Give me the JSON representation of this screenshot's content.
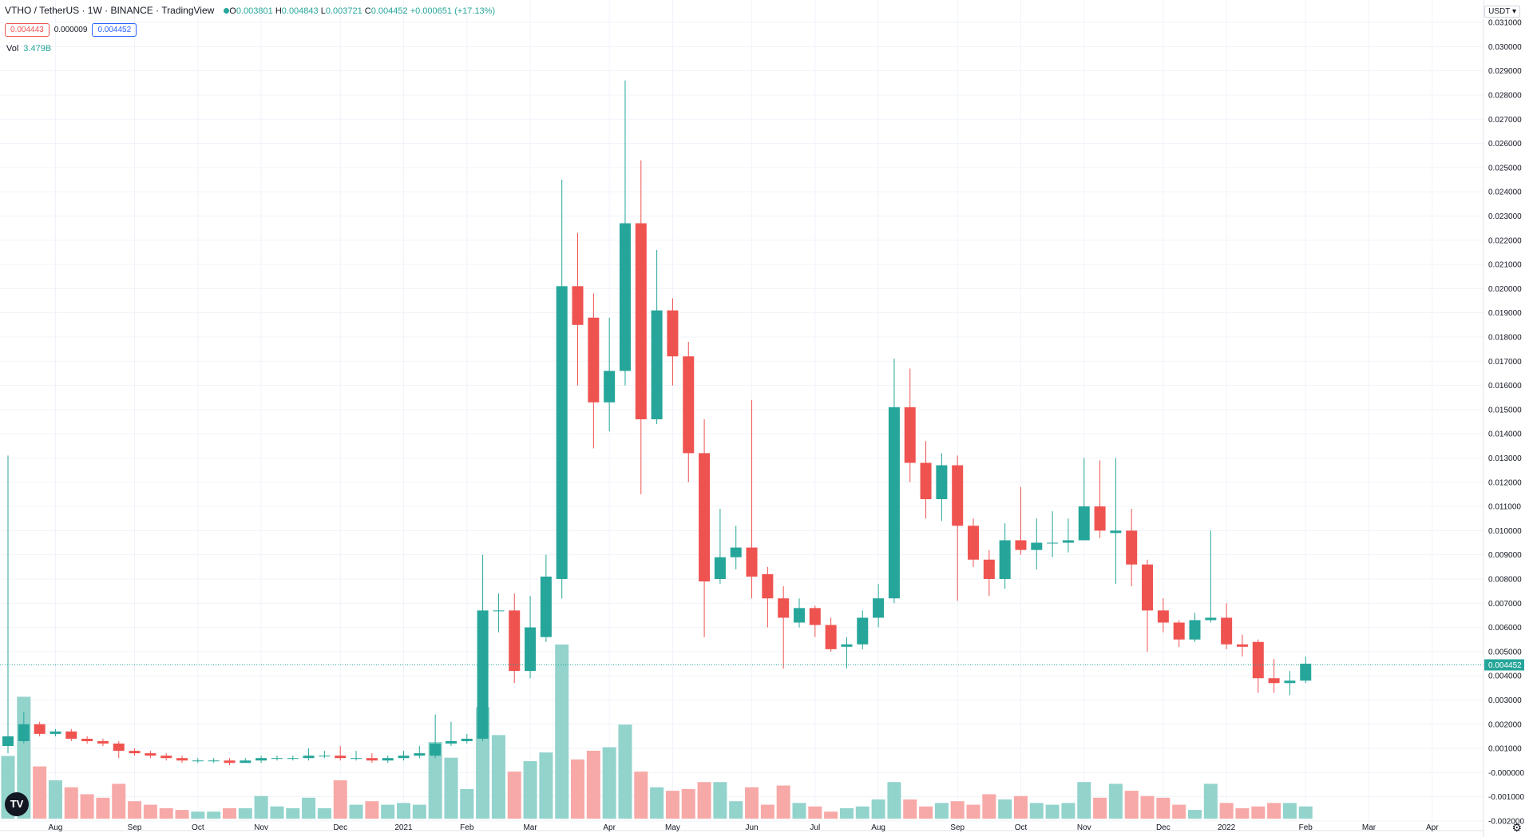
{
  "header": {
    "symbol": "VTHO / TetherUS · 1W · BINANCE · TradingView",
    "open_label": "O",
    "open": "0.003801",
    "high_label": "H",
    "high": "0.004843",
    "low_label": "L",
    "low": "0.003721",
    "close_label": "C",
    "close": "0.004452",
    "change": "+0.000651 (+17.13%)"
  },
  "quote": {
    "sell": "0.004443",
    "spread": "0.000009",
    "buy": "0.004452"
  },
  "volume": {
    "label": "Vol",
    "value": "3.479B"
  },
  "currency_selector": "USDT ▾",
  "logo_text": "TV",
  "colors": {
    "up": "#26a69a",
    "down": "#ef5350",
    "up_vol": "#92d3cc",
    "down_vol": "#f7a9a7",
    "grid": "#f0f3fa",
    "last_line": "#26a69a"
  },
  "chart_data": {
    "type": "candlestick",
    "title": "VTHO / TetherUS · 1W · BINANCE",
    "ylim": [
      -0.0021,
      0.0312
    ],
    "y_ticks": [
      "0.031000",
      "0.030000",
      "0.029000",
      "0.028000",
      "0.027000",
      "0.026000",
      "0.025000",
      "0.024000",
      "0.023000",
      "0.022000",
      "0.021000",
      "0.020000",
      "0.019000",
      "0.018000",
      "0.017000",
      "0.016000",
      "0.015000",
      "0.014000",
      "0.013000",
      "0.012000",
      "0.011000",
      "0.010000",
      "0.009000",
      "0.008000",
      "0.007000",
      "0.006000",
      "0.005000",
      "0.004000",
      "0.003000",
      "0.002000",
      "0.001000",
      "-0.000000",
      "-0.001000",
      "-0.002000"
    ],
    "x_ticks": [
      {
        "label": "Aug",
        "index": 3
      },
      {
        "label": "Sep",
        "index": 8
      },
      {
        "label": "Oct",
        "index": 12
      },
      {
        "label": "Nov",
        "index": 16
      },
      {
        "label": "Dec",
        "index": 21
      },
      {
        "label": "2021",
        "index": 25
      },
      {
        "label": "Feb",
        "index": 29
      },
      {
        "label": "Mar",
        "index": 33
      },
      {
        "label": "Apr",
        "index": 38
      },
      {
        "label": "May",
        "index": 42
      },
      {
        "label": "Jun",
        "index": 47
      },
      {
        "label": "Jul",
        "index": 51
      },
      {
        "label": "Aug",
        "index": 55
      },
      {
        "label": "Sep",
        "index": 60
      },
      {
        "label": "Oct",
        "index": 64
      },
      {
        "label": "Nov",
        "index": 68
      },
      {
        "label": "Dec",
        "index": 73
      },
      {
        "label": "2022",
        "index": 77
      },
      {
        "label": "Feb",
        "index": 82
      },
      {
        "label": "Mar",
        "index": 86
      },
      {
        "label": "Apr",
        "index": 90
      }
    ],
    "last_price": 0.004452,
    "last_price_label": "0.004452",
    "volume_max": 5.0,
    "candles": [
      [
        0.0011,
        0.0015,
        0.0131,
        0.0008,
        1.8
      ],
      [
        0.0013,
        0.002,
        0.0025,
        0.0012,
        3.5
      ],
      [
        0.002,
        0.0016,
        0.0021,
        0.0015,
        1.5
      ],
      [
        0.0016,
        0.0017,
        0.0018,
        0.0015,
        1.1
      ],
      [
        0.0017,
        0.0014,
        0.0018,
        0.0013,
        0.9
      ],
      [
        0.0014,
        0.0013,
        0.0015,
        0.0012,
        0.7
      ],
      [
        0.0013,
        0.0012,
        0.0014,
        0.0011,
        0.6
      ],
      [
        0.0012,
        0.0009,
        0.0013,
        0.0006,
        1.0
      ],
      [
        0.0009,
        0.0008,
        0.001,
        0.0007,
        0.5
      ],
      [
        0.0008,
        0.0007,
        0.0009,
        0.0006,
        0.4
      ],
      [
        0.0007,
        0.0006,
        0.0008,
        0.0005,
        0.3
      ],
      [
        0.0006,
        0.0005,
        0.0007,
        0.0004,
        0.25
      ],
      [
        0.0005,
        0.0005,
        0.0006,
        0.0004,
        0.2
      ],
      [
        0.0005,
        0.0005,
        0.0006,
        0.0004,
        0.2
      ],
      [
        0.0005,
        0.0004,
        0.0006,
        0.0003,
        0.3
      ],
      [
        0.0004,
        0.0005,
        0.0006,
        0.0004,
        0.3
      ],
      [
        0.0005,
        0.0006,
        0.0007,
        0.0004,
        0.65
      ],
      [
        0.0006,
        0.0006,
        0.0007,
        0.0005,
        0.35
      ],
      [
        0.0006,
        0.0006,
        0.0007,
        0.0005,
        0.3
      ],
      [
        0.0006,
        0.0007,
        0.001,
        0.0005,
        0.6
      ],
      [
        0.0007,
        0.0007,
        0.0009,
        0.0006,
        0.3
      ],
      [
        0.0007,
        0.0006,
        0.0011,
        0.0005,
        1.1
      ],
      [
        0.0006,
        0.0006,
        0.0009,
        0.0005,
        0.4
      ],
      [
        0.0006,
        0.0005,
        0.0008,
        0.0004,
        0.5
      ],
      [
        0.0005,
        0.0006,
        0.0007,
        0.0004,
        0.4
      ],
      [
        0.0006,
        0.0007,
        0.0009,
        0.0005,
        0.45
      ],
      [
        0.0007,
        0.0008,
        0.0011,
        0.0006,
        0.4
      ],
      [
        0.0007,
        0.0012,
        0.0024,
        0.0006,
        2.2
      ],
      [
        0.0012,
        0.0013,
        0.0021,
        0.0011,
        1.75
      ],
      [
        0.0013,
        0.0014,
        0.0016,
        0.0012,
        0.85
      ],
      [
        0.0014,
        0.0067,
        0.009,
        0.0013,
        3.2
      ],
      [
        0.0067,
        0.0067,
        0.0074,
        0.0058,
        2.4
      ],
      [
        0.0067,
        0.0042,
        0.0074,
        0.0037,
        1.35
      ],
      [
        0.0042,
        0.006,
        0.0073,
        0.0039,
        1.65
      ],
      [
        0.0056,
        0.0081,
        0.009,
        0.0054,
        1.9
      ],
      [
        0.008,
        0.0201,
        0.0245,
        0.0072,
        5.0
      ],
      [
        0.0201,
        0.0185,
        0.0223,
        0.016,
        1.7
      ],
      [
        0.0188,
        0.0153,
        0.0198,
        0.0134,
        1.95
      ],
      [
        0.0153,
        0.0166,
        0.0188,
        0.0141,
        2.05
      ],
      [
        0.0166,
        0.0227,
        0.0286,
        0.016,
        2.7
      ],
      [
        0.0227,
        0.0146,
        0.0253,
        0.0115,
        1.35
      ],
      [
        0.0146,
        0.0191,
        0.0216,
        0.0144,
        0.9
      ],
      [
        0.0191,
        0.0172,
        0.0196,
        0.016,
        0.8
      ],
      [
        0.0172,
        0.0132,
        0.0178,
        0.012,
        0.85
      ],
      [
        0.0132,
        0.0079,
        0.0146,
        0.0056,
        1.05
      ],
      [
        0.008,
        0.0089,
        0.0109,
        0.0078,
        1.05
      ],
      [
        0.0089,
        0.0093,
        0.0102,
        0.0084,
        0.5
      ],
      [
        0.0093,
        0.0081,
        0.0154,
        0.0072,
        0.9
      ],
      [
        0.0082,
        0.0072,
        0.0085,
        0.006,
        0.4
      ],
      [
        0.0072,
        0.0064,
        0.0077,
        0.0043,
        0.95
      ],
      [
        0.0062,
        0.0068,
        0.0072,
        0.006,
        0.45
      ],
      [
        0.0068,
        0.0061,
        0.0069,
        0.0056,
        0.35
      ],
      [
        0.0061,
        0.0051,
        0.0064,
        0.005,
        0.2
      ],
      [
        0.0052,
        0.0053,
        0.0056,
        0.0043,
        0.3
      ],
      [
        0.0053,
        0.0064,
        0.0067,
        0.0051,
        0.35
      ],
      [
        0.0064,
        0.0072,
        0.0078,
        0.006,
        0.55
      ],
      [
        0.0072,
        0.0151,
        0.0171,
        0.007,
        1.05
      ],
      [
        0.0151,
        0.0128,
        0.0167,
        0.012,
        0.55
      ],
      [
        0.0128,
        0.0113,
        0.0137,
        0.0105,
        0.35
      ],
      [
        0.0113,
        0.0127,
        0.0132,
        0.0104,
        0.45
      ],
      [
        0.0127,
        0.0102,
        0.0131,
        0.0071,
        0.5
      ],
      [
        0.0102,
        0.0088,
        0.0105,
        0.0085,
        0.4
      ],
      [
        0.0088,
        0.008,
        0.0092,
        0.0073,
        0.7
      ],
      [
        0.008,
        0.0096,
        0.0103,
        0.0076,
        0.55
      ],
      [
        0.0096,
        0.0092,
        0.0118,
        0.009,
        0.65
      ],
      [
        0.0092,
        0.0095,
        0.0105,
        0.0084,
        0.45
      ],
      [
        0.0095,
        0.0095,
        0.0108,
        0.0089,
        0.4
      ],
      [
        0.0095,
        0.0096,
        0.0105,
        0.0091,
        0.45
      ],
      [
        0.0096,
        0.011,
        0.013,
        0.0097,
        1.05
      ],
      [
        0.011,
        0.01,
        0.0129,
        0.0097,
        0.6
      ],
      [
        0.0099,
        0.01,
        0.013,
        0.0078,
        1.0
      ],
      [
        0.01,
        0.0086,
        0.0109,
        0.0077,
        0.8
      ],
      [
        0.0086,
        0.0067,
        0.0088,
        0.005,
        0.65
      ],
      [
        0.0067,
        0.0062,
        0.0072,
        0.0058,
        0.6
      ],
      [
        0.0062,
        0.0055,
        0.0063,
        0.0052,
        0.4
      ],
      [
        0.0055,
        0.0063,
        0.0066,
        0.0054,
        0.25
      ],
      [
        0.0063,
        0.0064,
        0.01,
        0.0062,
        1.0
      ],
      [
        0.0064,
        0.0053,
        0.007,
        0.0051,
        0.45
      ],
      [
        0.0053,
        0.0052,
        0.0057,
        0.0048,
        0.3
      ],
      [
        0.0054,
        0.0039,
        0.0055,
        0.0033,
        0.35
      ],
      [
        0.0039,
        0.0037,
        0.0047,
        0.0033,
        0.45
      ],
      [
        0.0037,
        0.0038,
        0.0042,
        0.0032,
        0.45
      ],
      [
        0.0038,
        0.0045,
        0.0048,
        0.0037,
        0.35
      ]
    ]
  }
}
